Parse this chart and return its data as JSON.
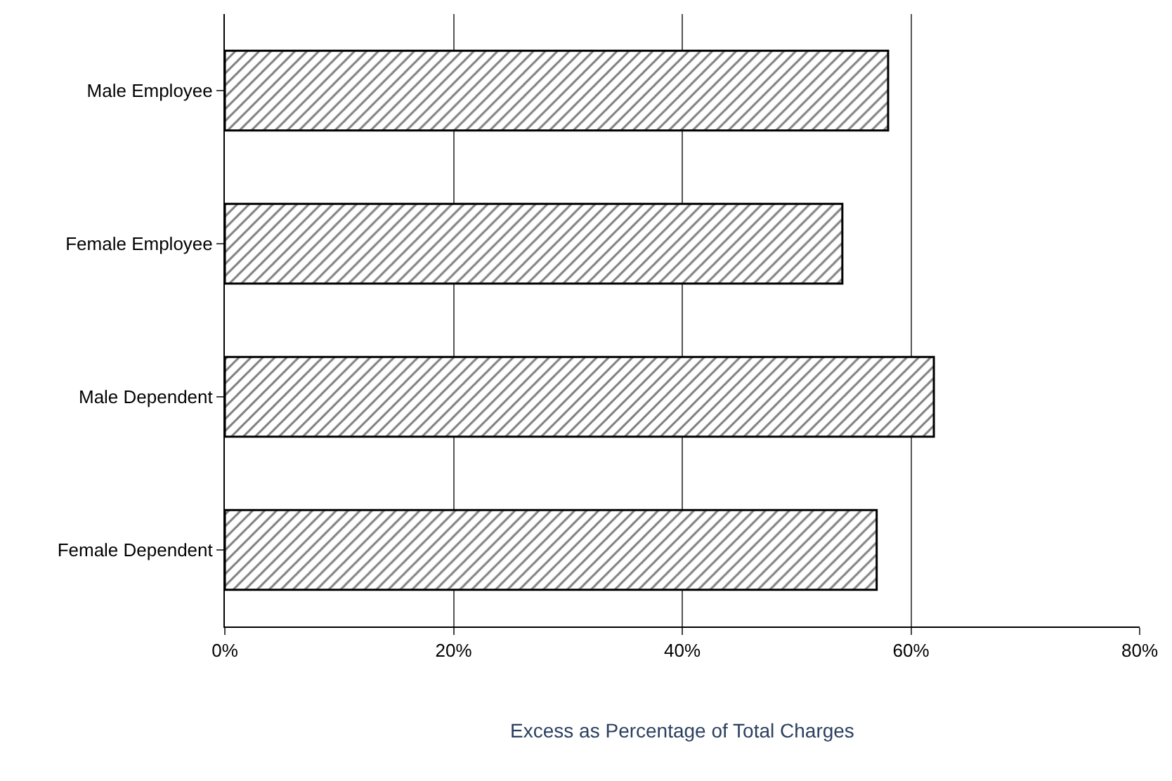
{
  "chart_data": {
    "type": "bar",
    "orientation": "horizontal",
    "xlabel": "Excess as Percentage of Total Charges",
    "categories": [
      "Male Employee",
      "Female Employee",
      "Male Dependent",
      "Female Dependent"
    ],
    "values": [
      58,
      54,
      62,
      57
    ],
    "color": "#000000",
    "xlim": [
      0,
      80
    ],
    "xticks": [
      {
        "value": 0,
        "label": "0%"
      },
      {
        "value": 20,
        "label": "20%"
      },
      {
        "value": 40,
        "label": "40%"
      },
      {
        "value": 60,
        "label": "60%"
      },
      {
        "value": 80,
        "label": "80%"
      }
    ],
    "grid": "x"
  }
}
